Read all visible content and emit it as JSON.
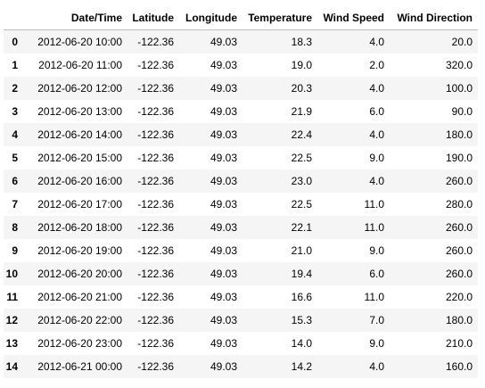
{
  "table": {
    "index_header": "",
    "columns": [
      "Date/Time",
      "Latitude",
      "Longitude",
      "Temperature",
      "Wind Speed",
      "Wind Direction"
    ],
    "rows": [
      {
        "index": "0",
        "cells": [
          "2012-06-20 10:00",
          "-122.36",
          "49.03",
          "18.3",
          "4.0",
          "20.0"
        ]
      },
      {
        "index": "1",
        "cells": [
          "2012-06-20 11:00",
          "-122.36",
          "49.03",
          "19.0",
          "2.0",
          "320.0"
        ]
      },
      {
        "index": "2",
        "cells": [
          "2012-06-20 12:00",
          "-122.36",
          "49.03",
          "20.3",
          "4.0",
          "100.0"
        ]
      },
      {
        "index": "3",
        "cells": [
          "2012-06-20 13:00",
          "-122.36",
          "49.03",
          "21.9",
          "6.0",
          "90.0"
        ]
      },
      {
        "index": "4",
        "cells": [
          "2012-06-20 14:00",
          "-122.36",
          "49.03",
          "22.4",
          "4.0",
          "180.0"
        ]
      },
      {
        "index": "5",
        "cells": [
          "2012-06-20 15:00",
          "-122.36",
          "49.03",
          "22.5",
          "9.0",
          "190.0"
        ]
      },
      {
        "index": "6",
        "cells": [
          "2012-06-20 16:00",
          "-122.36",
          "49.03",
          "23.0",
          "4.0",
          "260.0"
        ]
      },
      {
        "index": "7",
        "cells": [
          "2012-06-20 17:00",
          "-122.36",
          "49.03",
          "22.5",
          "11.0",
          "280.0"
        ]
      },
      {
        "index": "8",
        "cells": [
          "2012-06-20 18:00",
          "-122.36",
          "49.03",
          "22.1",
          "11.0",
          "260.0"
        ]
      },
      {
        "index": "9",
        "cells": [
          "2012-06-20 19:00",
          "-122.36",
          "49.03",
          "21.0",
          "9.0",
          "260.0"
        ]
      },
      {
        "index": "10",
        "cells": [
          "2012-06-20 20:00",
          "-122.36",
          "49.03",
          "19.4",
          "6.0",
          "260.0"
        ]
      },
      {
        "index": "11",
        "cells": [
          "2012-06-20 21:00",
          "-122.36",
          "49.03",
          "16.6",
          "11.0",
          "220.0"
        ]
      },
      {
        "index": "12",
        "cells": [
          "2012-06-20 22:00",
          "-122.36",
          "49.03",
          "15.3",
          "7.0",
          "180.0"
        ]
      },
      {
        "index": "13",
        "cells": [
          "2012-06-20 23:00",
          "-122.36",
          "49.03",
          "14.0",
          "9.0",
          "210.0"
        ]
      },
      {
        "index": "14",
        "cells": [
          "2012-06-21 00:00",
          "-122.36",
          "49.03",
          "14.2",
          "4.0",
          "160.0"
        ]
      }
    ]
  }
}
